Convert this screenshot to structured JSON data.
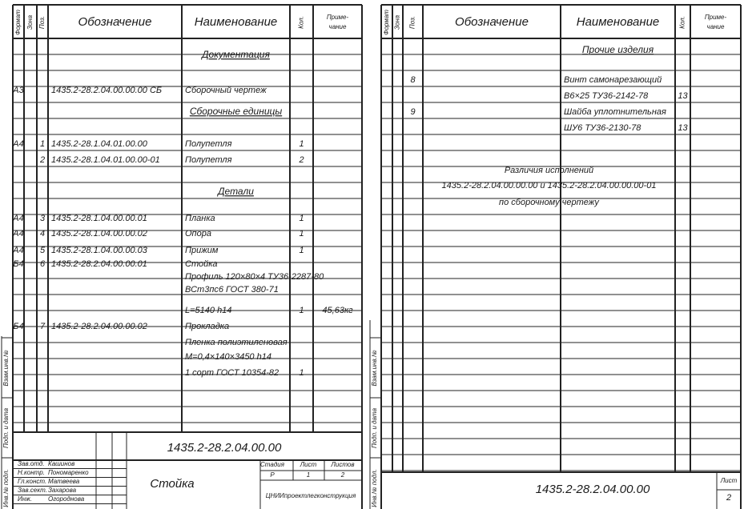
{
  "left": {
    "header": {
      "format": "Формат",
      "zone": "Зона",
      "pos": "Поз.",
      "designation": "Обозначение",
      "name": "Наименование",
      "qty": "Кол.",
      "note": [
        "Приме-",
        "чание"
      ]
    },
    "rows": [
      {
        "section": "Документация"
      },
      {
        "format": "А3",
        "designation": "1435.2-28.2.04.00.00.00 СБ",
        "name": "Сборочный чертеж"
      },
      {
        "section": "Сборочные единицы"
      },
      {
        "format": "А4",
        "pos": "1",
        "designation": "1435.2-28.1.04.01.00.00",
        "name": "Полупетля",
        "qty": "1"
      },
      {
        "pos": "2",
        "designation": "1435.2-28.1.04.01.00.00-01",
        "name": "Полупетля",
        "qty": "2"
      },
      {
        "section": "Детали"
      },
      {
        "format": "А4",
        "pos": "3",
        "designation": "1435.2-28.1.04.00.00.01",
        "name": "Планка",
        "qty": "1"
      },
      {
        "format": "А4",
        "pos": "4",
        "designation": "1435.2-28.1.04.00.00.02",
        "name": "Опора",
        "qty": "1"
      },
      {
        "format": "А4",
        "pos": "5",
        "designation": "1435.2-28.1.04.00.00.03",
        "name": "Прижим",
        "qty": "1"
      },
      {
        "format": "Б4",
        "pos": "6",
        "designation": "1435.2-28.2.04.00.00.01",
        "name": "Стойка"
      },
      {
        "name": "Профиль 120×80×4 ТУ36-2287-80"
      },
      {
        "name": "ВСт3пс6 ГОСТ 380-71"
      },
      {
        "name": "L=5140 h14",
        "qty": "1",
        "note": "45,63кг"
      },
      {
        "format": "Б4",
        "pos": "7",
        "designation": "1435.2-28.2.04.00.00.02",
        "name": "Прокладка"
      },
      {
        "name": "Пленка полиэтиленовая"
      },
      {
        "name": "М=0,4×140×3450 h14"
      },
      {
        "name": "1 сорт ГОСТ 10354-82",
        "qty": "1"
      }
    ],
    "title_block": {
      "designation": "1435.2-28.2.04.00.00",
      "name": "Стойка",
      "stage_header": [
        "Стадия",
        "Лист",
        "Листов"
      ],
      "stage": "Р",
      "sheet": "1",
      "sheets": "2",
      "organization": "ЦНИИпроектлегконструкция",
      "signatures": [
        {
          "role": "Зав.отд.",
          "person": "Кашинов"
        },
        {
          "role": "Н.контр.",
          "person": "Пономаренко"
        },
        {
          "role": "Гл.конст.",
          "person": "Матвеева"
        },
        {
          "role": "Зав.сект.",
          "person": "Захарова"
        },
        {
          "role": "Инж.",
          "person": "Огороднова"
        }
      ]
    },
    "margin": [
      "Инв.№ подл.",
      "Подп. и дата",
      "Взам.инв.№"
    ]
  },
  "right": {
    "header": {
      "format": "Формат",
      "zone": "Зона",
      "pos": "Поз.",
      "designation": "Обозначение",
      "name": "Наименование",
      "qty": "Кол.",
      "note": [
        "Приме-",
        "чание"
      ]
    },
    "rows": [
      {
        "section": "Прочие изделия"
      },
      {
        "pos": "8",
        "name": "Винт самонарезающий"
      },
      {
        "name": "В6×25 ТУ36-2142-78",
        "qty": "13"
      },
      {
        "pos": "9",
        "name": "Шайба уплотнительная"
      },
      {
        "name": "ШУ6 ТУ36-2130-78",
        "qty": "13"
      },
      {
        "text": "Различия исполнений"
      },
      {
        "text": "1435.2-28.2.04.00.00.00 и 1435.2-28.2.04.00.00.00-01"
      },
      {
        "text": "по сборочному чертежу"
      }
    ],
    "title_block": {
      "designation": "1435.2-28.2.04.00.00",
      "sheet_label": "Лист",
      "sheet": "2"
    },
    "margin": [
      "Инв.№ подл.",
      "Подп. и дата",
      "Взам.инв.№"
    ]
  }
}
